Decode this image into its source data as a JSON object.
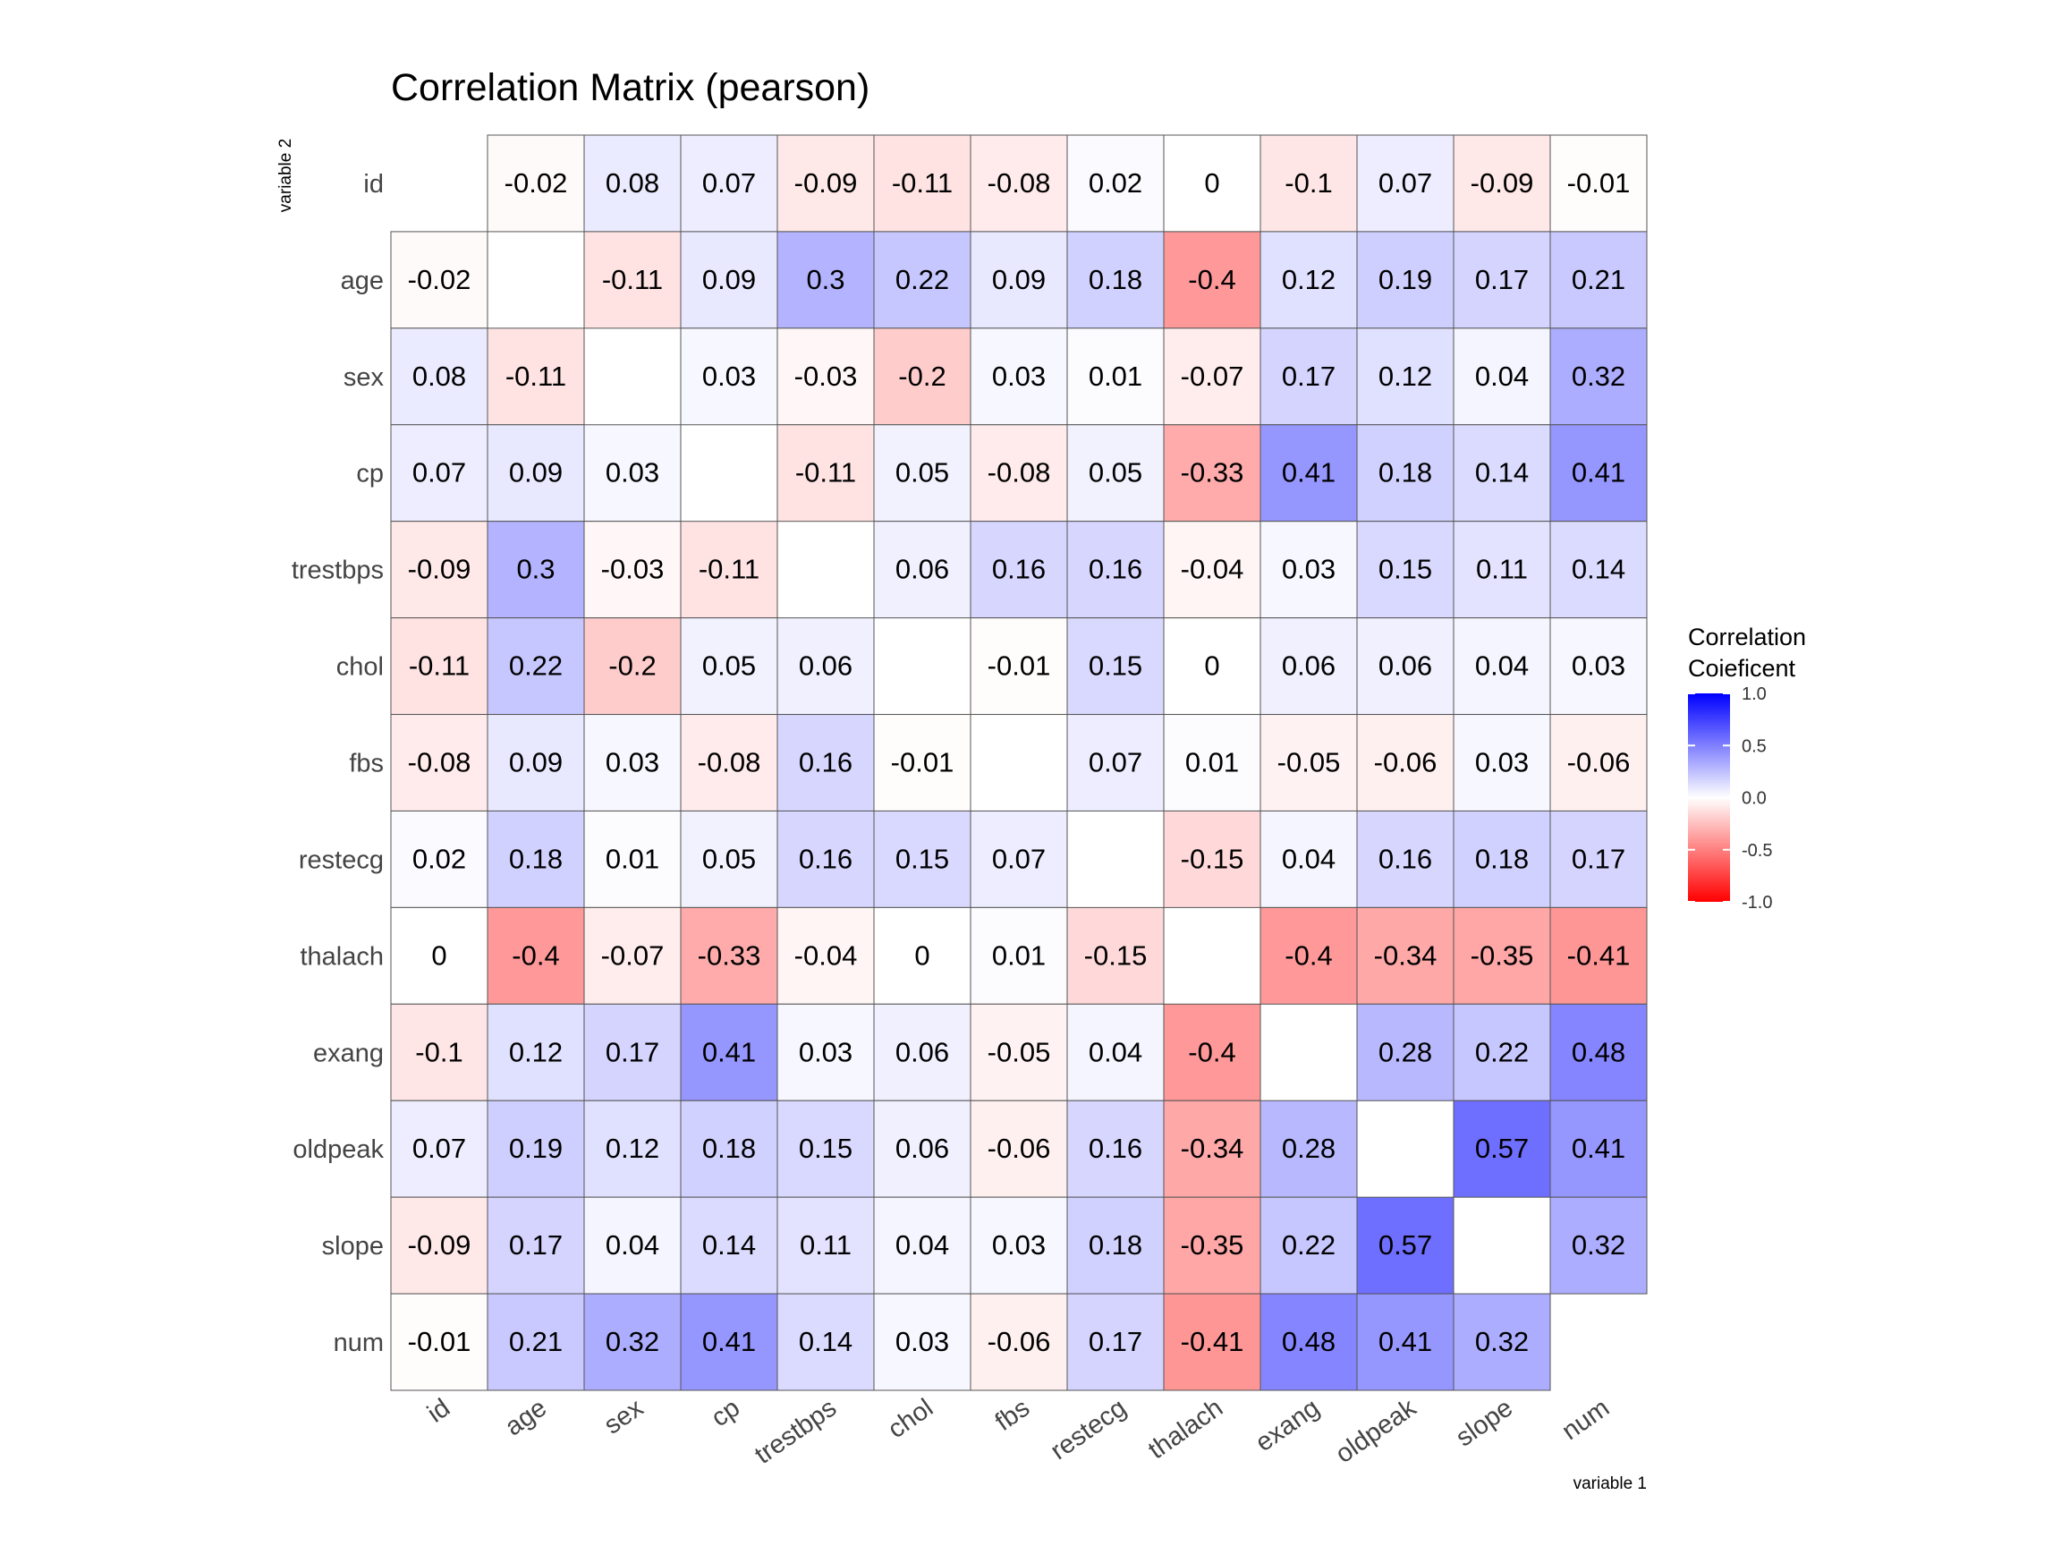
{
  "chart_data": {
    "type": "heatmap",
    "title": "Correlation Matrix (pearson)",
    "xlabel": "variable 1",
    "ylabel": "variable 2",
    "variables": [
      "id",
      "age",
      "sex",
      "cp",
      "trestbps",
      "chol",
      "fbs",
      "restecg",
      "thalach",
      "exang",
      "oldpeak",
      "slope",
      "num"
    ],
    "matrix": [
      [
        null,
        -0.02,
        0.08,
        0.07,
        -0.09,
        -0.11,
        -0.08,
        0.02,
        0,
        -0.1,
        0.07,
        -0.09,
        -0.01
      ],
      [
        -0.02,
        null,
        -0.11,
        0.09,
        0.3,
        0.22,
        0.09,
        0.18,
        -0.4,
        0.12,
        0.19,
        0.17,
        0.21
      ],
      [
        0.08,
        -0.11,
        null,
        0.03,
        -0.03,
        -0.2,
        0.03,
        0.01,
        -0.07,
        0.17,
        0.12,
        0.04,
        0.32
      ],
      [
        0.07,
        0.09,
        0.03,
        null,
        -0.11,
        0.05,
        -0.08,
        0.05,
        -0.33,
        0.41,
        0.18,
        0.14,
        0.41
      ],
      [
        -0.09,
        0.3,
        -0.03,
        -0.11,
        null,
        0.06,
        0.16,
        0.16,
        -0.04,
        0.03,
        0.15,
        0.11,
        0.14
      ],
      [
        -0.11,
        0.22,
        -0.2,
        0.05,
        0.06,
        null,
        -0.01,
        0.15,
        0,
        0.06,
        0.06,
        0.04,
        0.03
      ],
      [
        -0.08,
        0.09,
        0.03,
        -0.08,
        0.16,
        -0.01,
        null,
        0.07,
        0.01,
        -0.05,
        -0.06,
        0.03,
        -0.06
      ],
      [
        0.02,
        0.18,
        0.01,
        0.05,
        0.16,
        0.15,
        0.07,
        null,
        -0.15,
        0.04,
        0.16,
        0.18,
        0.17
      ],
      [
        0,
        -0.4,
        -0.07,
        -0.33,
        -0.04,
        0,
        0.01,
        -0.15,
        null,
        -0.4,
        -0.34,
        -0.35,
        -0.41
      ],
      [
        -0.1,
        0.12,
        0.17,
        0.41,
        0.03,
        0.06,
        -0.05,
        0.04,
        -0.4,
        null,
        0.28,
        0.22,
        0.48
      ],
      [
        0.07,
        0.19,
        0.12,
        0.18,
        0.15,
        0.06,
        -0.06,
        0.16,
        -0.34,
        0.28,
        null,
        0.57,
        0.41
      ],
      [
        -0.09,
        0.17,
        0.04,
        0.14,
        0.11,
        0.04,
        0.03,
        0.18,
        -0.35,
        0.22,
        0.57,
        null,
        0.32
      ],
      [
        -0.01,
        0.21,
        0.32,
        0.41,
        0.14,
        0.03,
        -0.06,
        0.17,
        -0.41,
        0.48,
        0.41,
        0.32,
        null
      ]
    ],
    "legend": {
      "title_lines": [
        "Correlation",
        "Coieficent"
      ],
      "ticks": [
        "1.0",
        "0.5",
        "0.0",
        "-0.5",
        "-1.0"
      ],
      "range": [
        -1,
        1
      ],
      "position": "right",
      "colors": {
        "high": "#0000ff",
        "mid": "#ffffff",
        "low": "#ff0000"
      }
    },
    "cell_border_color": "#555555",
    "grid": false
  }
}
